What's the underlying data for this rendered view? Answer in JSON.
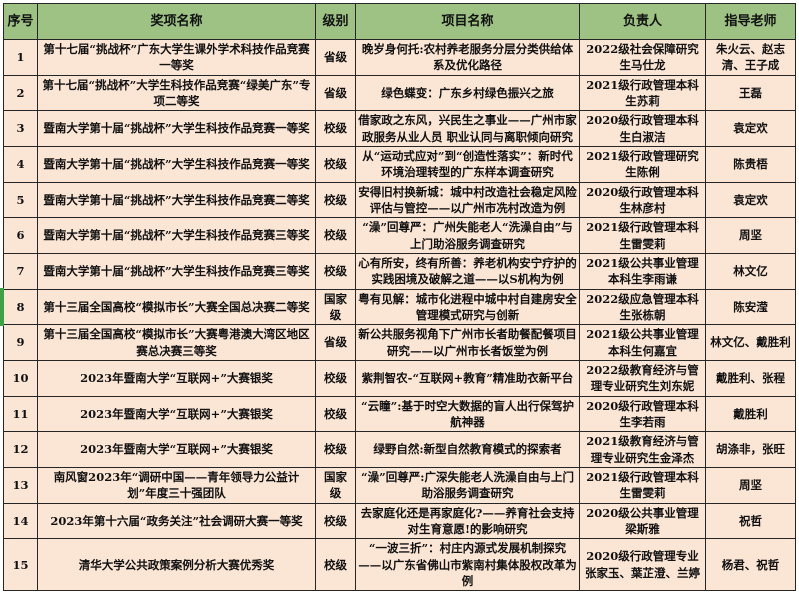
{
  "colors": {
    "header_bg": "#9dc284",
    "cell_bg": "#fbe5d5",
    "border": "#262626",
    "selection_green": "#3fa048"
  },
  "selection": {
    "selected_row_no": "8"
  },
  "table": {
    "headers": [
      "序号",
      "奖项名称",
      "级别",
      "项目名称",
      "负责人",
      "指导老师"
    ],
    "rows": [
      {
        "no": "1",
        "award": "第十七届“挑战杯”广东大学生课外学术科技作品竞赛一等奖",
        "level": "省级",
        "project": "晚岁身何托:农村养老服务分层分类供给体系及优化路径",
        "leader": "2022级社会保障研究生马仕龙",
        "advisor": "朱火云、赵志清、王子成"
      },
      {
        "no": "2",
        "award": "第十七届“挑战杯”大学生科技作品竞赛“绿美广东”专项二等奖",
        "level": "省级",
        "project": "绿色蝶变：广东乡村绿色振兴之旅",
        "leader": "2021级行政管理本科生苏莉",
        "advisor": "王磊"
      },
      {
        "no": "3",
        "award": "暨南大学第十届“挑战杯”大学生科技作品竞赛一等奖",
        "level": "校级",
        "project": "借家政之东风，兴民生之事业——广州市家政服务从业人员 职业认同与离职倾向研究",
        "leader": "2020级行政管理本科生白淑洁",
        "advisor": "袁定欢"
      },
      {
        "no": "4",
        "award": "暨南大学第十届“挑战杯”大学生科技作品竞赛一等奖",
        "level": "校级",
        "project": "从“运动式应对”到“创造性落实”：新时代环境治理转型的广东样本调查研究",
        "leader": "2021级行政管理研究生陈俐",
        "advisor": "陈贵梧"
      },
      {
        "no": "5",
        "award": "暨南大学第十届“挑战杯”大学生科技作品竞赛二等奖",
        "level": "校级",
        "project": "安得旧村换新城：城中村改造社会稳定风险评估与管控——以广州市冼村改造为例",
        "leader": "2020级行政管理本科生林彦村",
        "advisor": "袁定欢"
      },
      {
        "no": "6",
        "award": "暨南大学第十届“挑战杯”大学生科技作品竞赛三等奖",
        "level": "校级",
        "project": "“澡”回尊严：广州失能老人“洗澡自由”与上门助浴服务调查研究",
        "leader": "2021级行政管理本科生雷雯莉",
        "advisor": "周坚"
      },
      {
        "no": "7",
        "award": "暨南大学第十届“挑战杯”大学生科技作品竞赛三等奖",
        "level": "校级",
        "project": "心有所安，终有所善：养老机构安宁疗护的实践困境及破解之道——以S机构为例",
        "leader": "2021级公共事业管理本科生李雨谦",
        "advisor": "林文亿"
      },
      {
        "no": "8",
        "award": "第十三届全国高校“模拟市长”大赛全国总决赛二等奖",
        "level": "国家级",
        "project": "粤有见解：城市化进程中城中村自建房安全管理模式研究与创新",
        "leader": "2022级应急管理本科生张栋朝",
        "advisor": "陈安滢"
      },
      {
        "no": "9",
        "award": "第十三届全国高校“模拟市长”大赛粤港澳大湾区地区赛总决赛三等奖",
        "level": "省级",
        "project": "新公共服务视角下广州市长者助餐配餐项目研究——以广州市长者饭堂为例",
        "leader": "2021级公共事业管理本科生何嘉宜",
        "advisor": "林文亿、戴胜利"
      },
      {
        "no": "10",
        "award": "2023年暨南大学“互联网+”大赛银奖",
        "level": "校级",
        "project": "紫荆智农-“互联网+教育”精准助衣新平台",
        "leader": "2022级教育经济与管理专业研究生刘东妮",
        "advisor": "戴胜利、张程"
      },
      {
        "no": "11",
        "award": "2023年暨南大学“互联网+”大赛银奖",
        "level": "校级",
        "project": "“云瞳”:基于时空大数据的盲人出行保驾护航神器",
        "leader": "2020级行政管理本科生李若雨",
        "advisor": "戴胜利"
      },
      {
        "no": "12",
        "award": "2023年暨南大学“互联网+”大赛银奖",
        "level": "校级",
        "project": "绿野自然:新型自然教育模式的探索者",
        "leader": "2021级教育经济与管理专业研究生金泽杰",
        "advisor": "胡涤非，张旺"
      },
      {
        "no": "13",
        "award": "南风窗2023年“调研中国——青年领导力公益计划”年度三十强团队",
        "level": "国家级",
        "project": "“澡”回尊严:广深失能老人洗澡自由与上门助浴服务调查研究",
        "leader": "2021级行政管理本科生雷雯莉",
        "advisor": "周坚"
      },
      {
        "no": "14",
        "award": "2023年第十六届“政务关注”社会调研大赛一等奖",
        "level": "校级",
        "project": "去家庭化还是再家庭化?——养育社会支持对生育意愿!的影响研究",
        "leader": "2020级公共事业管理梁斯雅",
        "advisor": "祝哲"
      },
      {
        "no": "15",
        "award": "清华大学公共政策案例分析大赛优秀奖",
        "level": "校级",
        "project": "“一波三折”：村庄内源式发展机制探究——以广东省佛山市紫南村集体股权改革为例",
        "leader": "2020级行政管理专业张家玉、葉芷澄、兰婷",
        "advisor": "杨君、祝哲"
      }
    ]
  }
}
